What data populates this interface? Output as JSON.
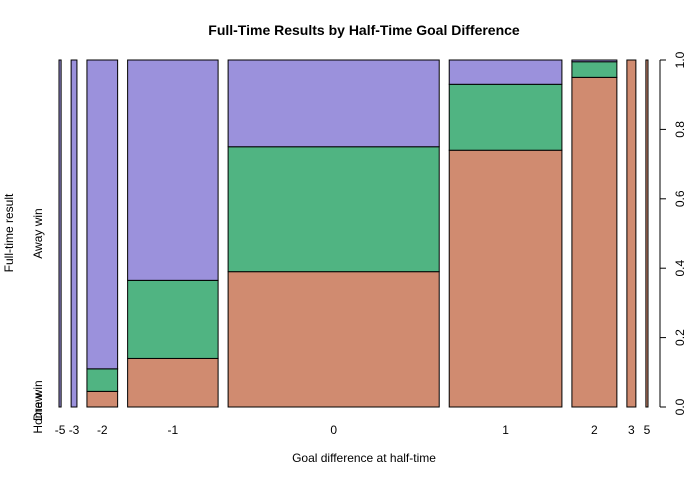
{
  "chart_data": {
    "type": "mosaic",
    "title": "Full-Time Results by Half-Time Goal Difference",
    "xlabel": "Goal difference at half-time",
    "ylabel": "Full-time result",
    "categories": [
      "-5",
      "-3",
      "-2",
      "-1",
      "0",
      "1",
      "2",
      "3",
      "5"
    ],
    "column_shares": [
      0.004,
      0.011,
      0.058,
      0.171,
      0.399,
      0.213,
      0.085,
      0.017,
      0.004
    ],
    "series": [
      {
        "name": "Home win",
        "color": "#D08B70",
        "values": [
          0.0,
          0.0,
          0.045,
          0.14,
          0.39,
          0.74,
          0.95,
          1.0,
          1.0
        ]
      },
      {
        "name": "Draw",
        "color": "#50B482",
        "values": [
          0.0,
          0.0,
          0.065,
          0.225,
          0.36,
          0.19,
          0.045,
          0.0,
          0.0
        ]
      },
      {
        "name": "Away win",
        "color": "#9B91DC",
        "values": [
          1.0,
          1.0,
          0.89,
          0.635,
          0.25,
          0.07,
          0.005,
          0.0,
          0.0
        ]
      }
    ],
    "y_right_ticks": [
      "0.0",
      "0.2",
      "0.4",
      "0.6",
      "0.8",
      "1.0"
    ],
    "ylim": [
      0,
      1
    ]
  }
}
